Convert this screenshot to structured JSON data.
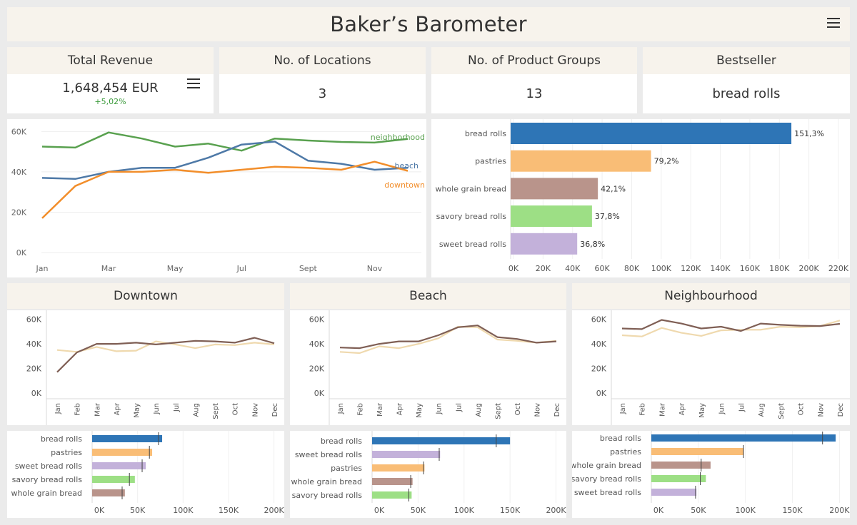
{
  "title": "Baker’s Barometer",
  "kpis": [
    {
      "label": "Total Revenue",
      "value": "1,648,454 EUR",
      "sub": "+5,02%"
    },
    {
      "label": "No. of Locations",
      "value": "3"
    },
    {
      "label": "No. of Product Groups",
      "value": "13"
    },
    {
      "label": "Bestseller",
      "value": "bread rolls"
    }
  ],
  "regions": {
    "downtown": "Downtown",
    "beach": "Beach",
    "neighbourhood": "Neighbourhood"
  },
  "colors": {
    "neighborhood": "#59a14f",
    "beach": "#4e79a7",
    "downtown": "#f28e2b",
    "current": "#7f5f55",
    "previous": "#efd9ae",
    "bread_rolls": "#2e75b6",
    "pastries": "#f9bd76",
    "whole_grain_bread": "#b9948b",
    "savory_bread_rolls": "#9ddf85",
    "sweet_bread_rolls": "#c3b1da"
  },
  "chart_data": [
    {
      "type": "line",
      "x": [
        "Jan",
        "Feb",
        "Mar",
        "Apr",
        "May",
        "Jun",
        "Jul",
        "Aug",
        "Sept",
        "Oct",
        "Nov",
        "Dec"
      ],
      "xticks": [
        "Jan",
        "Mar",
        "May",
        "Jul",
        "Sept",
        "Nov"
      ],
      "yticks": [
        "0K",
        "20K",
        "40K",
        "60K"
      ],
      "ylim": [
        0,
        64000
      ],
      "series": [
        {
          "name": "neighborhood",
          "values": [
            52500,
            52000,
            59500,
            56500,
            52500,
            54000,
            50500,
            56500,
            55500,
            54800,
            54500,
            56300
          ]
        },
        {
          "name": "beach",
          "values": [
            37000,
            36500,
            40000,
            42000,
            42000,
            47000,
            53500,
            55000,
            45500,
            44000,
            41000,
            42000
          ]
        },
        {
          "name": "downtown",
          "values": [
            17000,
            33000,
            40000,
            40000,
            41000,
            39500,
            41000,
            42500,
            42000,
            41000,
            45000,
            40500
          ]
        }
      ]
    },
    {
      "type": "bar",
      "orientation": "horizontal",
      "categories": [
        "bread rolls",
        "pastries",
        "whole grain bread",
        "savory bread rolls",
        "sweet bread rolls"
      ],
      "values": [
        192000,
        97000,
        61000,
        57000,
        47000
      ],
      "labels": [
        "151,3%",
        "79,2%",
        "42,1%",
        "37,8%",
        "36,8%"
      ],
      "xticks": [
        "0K",
        "20K",
        "40K",
        "60K",
        "80K",
        "100K",
        "120K",
        "140K",
        "160K",
        "180K",
        "200K",
        "220K"
      ],
      "xlim": [
        0,
        220000
      ]
    },
    {
      "type": "line",
      "title": "Downtown",
      "x": [
        "Jan",
        "Feb",
        "Mar",
        "Apr",
        "May",
        "Jun",
        "Jul",
        "Aug",
        "Sept",
        "Oct",
        "Nov",
        "Dec"
      ],
      "yticks": [
        "0K",
        "20K",
        "40K",
        "60K"
      ],
      "ylim": [
        0,
        65000
      ],
      "series": [
        {
          "values": [
            17000,
            33000,
            40000,
            40000,
            41000,
            39500,
            41000,
            42500,
            42000,
            41000,
            45000,
            40500
          ]
        },
        {
          "values": [
            35000,
            33500,
            37500,
            34000,
            34500,
            42000,
            39500,
            36500,
            39500,
            39000,
            41000,
            39500
          ]
        }
      ]
    },
    {
      "type": "line",
      "title": "Beach",
      "x": [
        "Jan",
        "Feb",
        "Mar",
        "Apr",
        "May",
        "Jun",
        "Jul",
        "Aug",
        "Sept",
        "Oct",
        "Nov",
        "Dec"
      ],
      "yticks": [
        "0K",
        "20K",
        "40K",
        "60K"
      ],
      "ylim": [
        0,
        65000
      ],
      "series": [
        {
          "values": [
            37000,
            36500,
            40000,
            42000,
            42000,
            47000,
            53500,
            55000,
            45500,
            44000,
            41000,
            42000
          ]
        },
        {
          "values": [
            33500,
            32500,
            38000,
            36500,
            40000,
            44500,
            54000,
            53500,
            43500,
            42500,
            41000,
            42500
          ]
        }
      ]
    },
    {
      "type": "line",
      "title": "Neighbourhood",
      "x": [
        "Jan",
        "Feb",
        "Mar",
        "Apr",
        "May",
        "Jun",
        "Jul",
        "Aug",
        "Sept",
        "Oct",
        "Nov",
        "Dec"
      ],
      "yticks": [
        "0K",
        "20K",
        "40K",
        "60K"
      ],
      "ylim": [
        0,
        65000
      ],
      "series": [
        {
          "values": [
            52500,
            52000,
            59500,
            56500,
            52500,
            54000,
            50500,
            56500,
            55500,
            54800,
            54500,
            56300
          ]
        },
        {
          "values": [
            47000,
            46000,
            53000,
            49000,
            46500,
            51000,
            51500,
            51500,
            54000,
            53500,
            54500,
            59000
          ]
        }
      ]
    },
    {
      "type": "bar",
      "orientation": "horizontal",
      "categories": [
        "bread rolls",
        "pastries",
        "sweet bread rolls",
        "savory bread rolls",
        "whole grain bread"
      ],
      "values": [
        77000,
        66000,
        59000,
        47000,
        36000
      ],
      "targets": [
        73000,
        63000,
        55000,
        41000,
        33000
      ],
      "xticks": [
        "0K",
        "50K",
        "100K",
        "150K",
        "200K"
      ],
      "xlim": [
        0,
        205000
      ]
    },
    {
      "type": "bar",
      "orientation": "horizontal",
      "categories": [
        "bread rolls",
        "sweet bread rolls",
        "pastries",
        "whole grain bread",
        "savory bread rolls"
      ],
      "values": [
        150000,
        74000,
        57000,
        44000,
        43000
      ],
      "targets": [
        135000,
        73000,
        56000,
        42000,
        40000
      ],
      "xticks": [
        "0K",
        "50K",
        "100K",
        "150K",
        "200K"
      ],
      "xlim": [
        0,
        205000
      ]
    },
    {
      "type": "bar",
      "orientation": "horizontal",
      "categories": [
        "bread rolls",
        "pastries",
        "whole grain bread",
        "savory bread rolls",
        "sweet bread rolls"
      ],
      "values": [
        196000,
        98000,
        63000,
        58000,
        48000
      ],
      "targets": [
        182000,
        98000,
        53000,
        52000,
        47000
      ],
      "xticks": [
        "0K",
        "50K",
        "100K",
        "150K",
        "200K"
      ],
      "xlim": [
        0,
        205000
      ]
    }
  ]
}
